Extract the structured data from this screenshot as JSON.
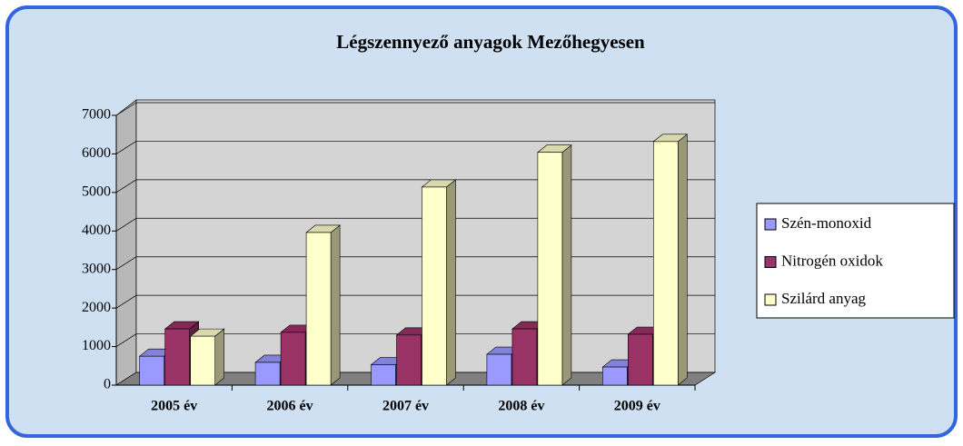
{
  "chart_data": {
    "type": "bar",
    "title": "Légszennyező anyagok Mezőhegyesen",
    "categories": [
      "2005 év",
      "2006 év",
      "2007 év",
      "2008 év",
      "2009 év"
    ],
    "series": [
      {
        "name": "Szén-monoxid",
        "color": "#9999ff",
        "values": [
          750,
          590,
          530,
          800,
          470
        ]
      },
      {
        "name": "Nitrogén oxidok",
        "color": "#993366",
        "values": [
          1460,
          1370,
          1300,
          1460,
          1320
        ]
      },
      {
        "name": "Szilárd anyag",
        "color": "#ffffcc",
        "values": [
          1270,
          3960,
          5140,
          6040,
          6320
        ]
      }
    ],
    "ylim": [
      0,
      7000
    ],
    "yticks": [
      0,
      1000,
      2000,
      3000,
      4000,
      5000,
      6000,
      7000
    ],
    "grid": true,
    "legend": "right"
  }
}
